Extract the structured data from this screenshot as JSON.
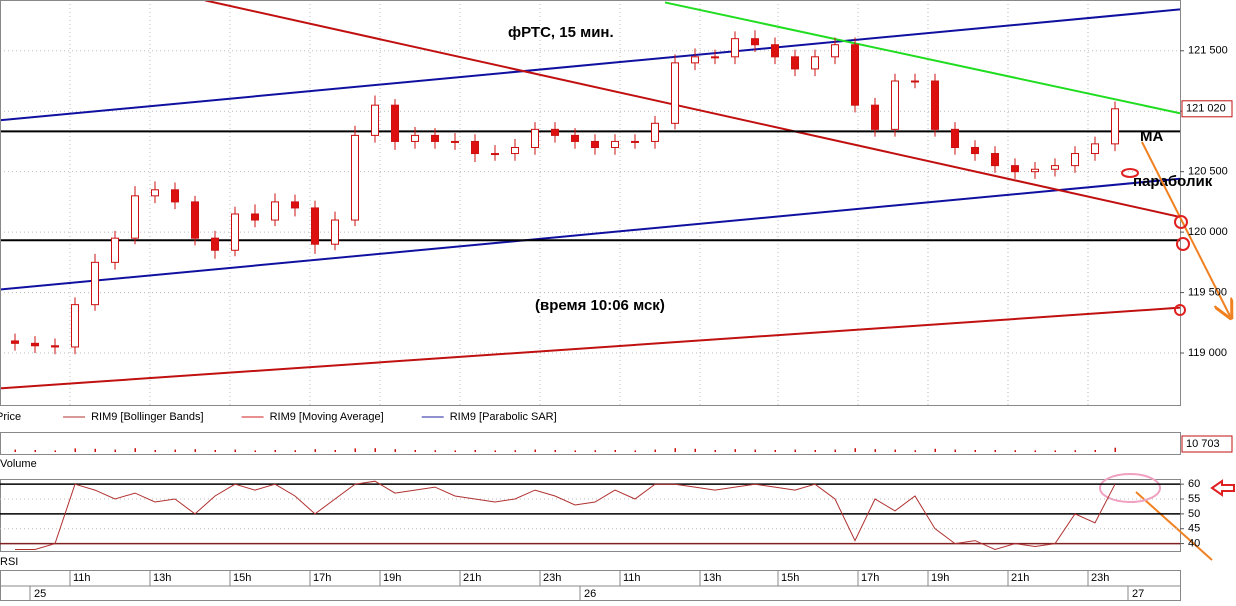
{
  "chart_data": [
    {
      "type": "candlestick",
      "title": "фРТС,  15 мин.",
      "annotations": [
        "(время 10:06 мск)",
        "MA",
        "параболик"
      ],
      "legend": [
        {
          "name": "Price"
        },
        {
          "name": "RIM9 [Bollinger Bands]",
          "color": "#b03030"
        },
        {
          "name": "RIM9 [Moving Average]",
          "color": "#d02020"
        },
        {
          "name": "RIM9 [Parabolic SAR]",
          "color": "#2020a0"
        }
      ],
      "xlim": [
        -0.75,
        58.25
      ],
      "ylim": [
        118570,
        121920
      ],
      "yticks": [
        {
          "value": 121500,
          "label": "121 500"
        },
        {
          "value": 121000,
          "label": "121 000"
        },
        {
          "value": 120500,
          "label": "120 500"
        },
        {
          "value": 120000,
          "label": "120 000"
        },
        {
          "value": 119500,
          "label": "119 500"
        },
        {
          "value": 119000,
          "label": "119 000"
        }
      ],
      "last_price": {
        "value": 121020,
        "label": "121 020"
      },
      "grid": true,
      "up_color": "#ffffff",
      "down_color": "#dd1010",
      "outline_color": "#cc1010",
      "open": [
        119100,
        119080,
        119060,
        119050,
        119400,
        119750,
        119950,
        120300,
        120350,
        120250,
        119950,
        119850,
        120150,
        120100,
        120250,
        120200,
        119900,
        120100,
        120800,
        121050,
        120750,
        120800,
        120750,
        120750,
        120650,
        120650,
        120700,
        120850,
        120800,
        120750,
        120700,
        120750,
        120750,
        120900,
        121400,
        121450,
        121450,
        121600,
        121550,
        121450,
        121350,
        121450,
        121550,
        121050,
        120850,
        121250,
        121250,
        120850,
        120700,
        120650,
        120550,
        120500,
        120520,
        120550,
        120650,
        120730
      ],
      "high": [
        119160,
        119140,
        119120,
        119460,
        119820,
        120010,
        120380,
        120420,
        120410,
        120300,
        120010,
        120210,
        120230,
        120320,
        120310,
        120260,
        120170,
        120880,
        121130,
        121100,
        120870,
        120860,
        120820,
        120810,
        120720,
        120770,
        120910,
        120910,
        120860,
        120810,
        120810,
        120810,
        120960,
        121470,
        121520,
        121510,
        121660,
        121670,
        121610,
        121510,
        121510,
        121610,
        121610,
        121110,
        121310,
        121310,
        121310,
        120910,
        120760,
        120710,
        120610,
        120580,
        120610,
        120710,
        120790,
        121080
      ],
      "low": [
        119020,
        119000,
        118990,
        118990,
        119350,
        119690,
        119900,
        120240,
        120190,
        119890,
        119780,
        119800,
        120040,
        120050,
        120130,
        119820,
        119850,
        120050,
        120740,
        120680,
        120690,
        120690,
        120680,
        120580,
        120590,
        120590,
        120640,
        120740,
        120690,
        120640,
        120640,
        120690,
        120690,
        120850,
        121340,
        121390,
        121390,
        121490,
        121390,
        121290,
        121290,
        121390,
        120990,
        120790,
        120790,
        121190,
        120790,
        120640,
        120590,
        120490,
        120440,
        120440,
        120460,
        120490,
        120590,
        120670
      ],
      "close": [
        119080,
        119060,
        119050,
        119400,
        119750,
        119950,
        120300,
        120350,
        120250,
        119950,
        119850,
        120150,
        120100,
        120250,
        120200,
        119900,
        120100,
        120800,
        121050,
        120750,
        120800,
        120750,
        120750,
        120650,
        120650,
        120700,
        120850,
        120800,
        120750,
        120700,
        120750,
        120750,
        120900,
        121400,
        121450,
        121450,
        121600,
        121550,
        121450,
        121350,
        121450,
        121550,
        121050,
        120850,
        121250,
        121250,
        120850,
        120700,
        120650,
        120550,
        120500,
        120520,
        120550,
        120650,
        120730,
        121020
      ],
      "trendlines": [
        {
          "color": "#1010a0",
          "points": [
            [
              -0.75,
              120925
            ],
            [
              58.25,
              121842
            ]
          ]
        },
        {
          "color": "#1010a0",
          "points": [
            [
              -0.75,
              119525
            ],
            [
              58.25,
              120442
            ]
          ]
        },
        {
          "color": "#c01010",
          "points": [
            [
              9.5,
              121917
            ],
            [
              58.25,
              120125
            ]
          ]
        },
        {
          "color": "#c01010",
          "points": [
            [
              -0.75,
              118708
            ],
            [
              58.25,
              119375
            ]
          ]
        },
        {
          "color": "#20dd20",
          "points": [
            [
              32.5,
              121900
            ],
            [
              58.25,
              120983
            ]
          ]
        },
        {
          "color": "#000000",
          "points": [
            [
              -0.75,
              120833
            ],
            [
              58.25,
              120833
            ]
          ]
        },
        {
          "color": "#000000",
          "points": [
            [
              -0.75,
              119933
            ],
            [
              58.25,
              119933
            ]
          ]
        }
      ]
    },
    {
      "type": "bar",
      "name": "Volume",
      "color": "#cc1010",
      "ylim": [
        0,
        40000
      ],
      "last_value": {
        "value": 10703,
        "label": "10 703"
      },
      "values": [
        6000,
        5000,
        4000,
        9000,
        8000,
        6000,
        9500,
        5000,
        6000,
        7000,
        5000,
        6000,
        4000,
        5000,
        4500,
        7000,
        5000,
        9000,
        9500,
        7000,
        5000,
        4500,
        4000,
        5000,
        4000,
        4500,
        6000,
        5000,
        4000,
        4500,
        5000,
        4000,
        6000,
        9500,
        8000,
        5000,
        7000,
        6000,
        5000,
        6000,
        5000,
        6000,
        9500,
        7000,
        6000,
        4500,
        8000,
        6000,
        5000,
        5000,
        4500,
        4000,
        4000,
        4500,
        5000,
        10703
      ]
    },
    {
      "type": "line",
      "name": "RSI",
      "color": "#b03030",
      "ylim": [
        37.5,
        61.4
      ],
      "yticks": [
        60,
        55,
        50,
        45,
        40
      ],
      "levels": [
        60,
        50,
        40
      ],
      "values": [
        38,
        38,
        40,
        60,
        58,
        55,
        57,
        54,
        55,
        50,
        56,
        60,
        58,
        60,
        56,
        50,
        55,
        60,
        61,
        57,
        58,
        59,
        56,
        55,
        54,
        55,
        58,
        56,
        53,
        54,
        58,
        55,
        60,
        60,
        59,
        58,
        59,
        60,
        59,
        58,
        60,
        55,
        41,
        55,
        51,
        56,
        45,
        40,
        41,
        38,
        40,
        39,
        40,
        50,
        47,
        60
      ]
    }
  ],
  "time_axis": {
    "hours": [
      {
        "value": 2.75,
        "label": "11h"
      },
      {
        "value": 6.75,
        "label": "13h"
      },
      {
        "value": 10.75,
        "label": "15h"
      },
      {
        "value": 14.75,
        "label": "17h"
      },
      {
        "value": 18.25,
        "label": "19h"
      },
      {
        "value": 22.25,
        "label": "21h"
      },
      {
        "value": 26.25,
        "label": "23h"
      },
      {
        "value": 30.25,
        "label": "11h"
      },
      {
        "value": 34.25,
        "label": "13h"
      },
      {
        "value": 38.15,
        "label": "15h"
      },
      {
        "value": 42.15,
        "label": "17h"
      },
      {
        "value": 45.65,
        "label": "19h"
      },
      {
        "value": 49.65,
        "label": "21h"
      },
      {
        "value": 53.65,
        "label": "23h"
      }
    ],
    "days": [
      {
        "value": 0.75,
        "label": "25"
      },
      {
        "value": 28.25,
        "label": "26"
      },
      {
        "value": 55.65,
        "label": "27"
      }
    ]
  }
}
